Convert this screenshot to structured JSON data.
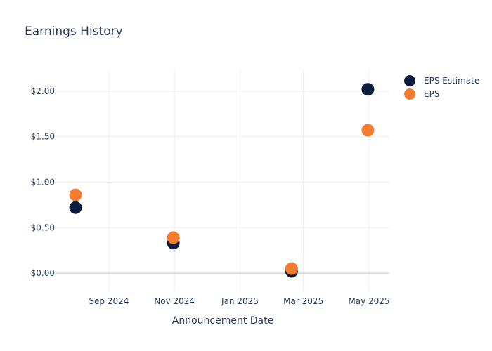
{
  "chart_data": {
    "type": "scatter",
    "title": "Earnings History",
    "xlabel": "Announcement Date",
    "ylabel": "",
    "x_ticks": [
      {
        "date": "2024-09-01",
        "label": "Sep 2024"
      },
      {
        "date": "2024-11-01",
        "label": "Nov 2024"
      },
      {
        "date": "2025-01-01",
        "label": "Jan 2025"
      },
      {
        "date": "2025-03-01",
        "label": "Mar 2025"
      },
      {
        "date": "2025-05-01",
        "label": "May 2025"
      }
    ],
    "y_ticks": [
      {
        "value": 0.0,
        "label": "$0.00"
      },
      {
        "value": 0.5,
        "label": "$0.50"
      },
      {
        "value": 1.0,
        "label": "$1.00"
      },
      {
        "value": 1.5,
        "label": "$1.50"
      },
      {
        "value": 2.0,
        "label": "$2.00"
      }
    ],
    "xlim": [
      "2024-07-14",
      "2025-05-20"
    ],
    "ylim": [
      -0.2,
      2.23
    ],
    "grid": true,
    "legend_position": "top-right",
    "series": [
      {
        "name": "EPS Estimate",
        "color": "#0b1d3f",
        "points": [
          {
            "x": "2024-08-01",
            "y": 0.72
          },
          {
            "x": "2024-10-31",
            "y": 0.33
          },
          {
            "x": "2025-02-18",
            "y": 0.02
          },
          {
            "x": "2025-04-30",
            "y": 2.02
          }
        ]
      },
      {
        "name": "EPS",
        "color": "#f47c30",
        "points": [
          {
            "x": "2024-08-01",
            "y": 0.86
          },
          {
            "x": "2024-10-31",
            "y": 0.39
          },
          {
            "x": "2025-02-18",
            "y": 0.05
          },
          {
            "x": "2025-04-30",
            "y": 1.57
          }
        ]
      }
    ]
  }
}
